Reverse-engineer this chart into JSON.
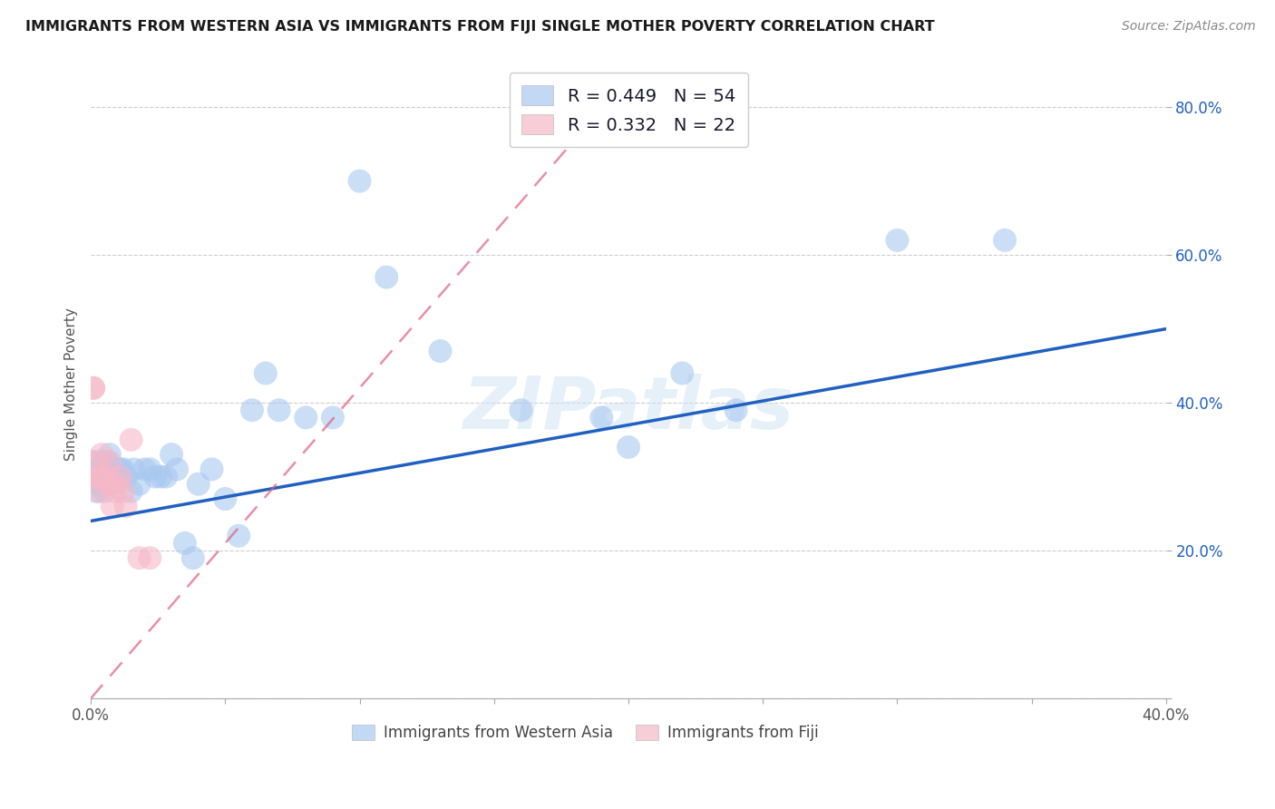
{
  "title": "IMMIGRANTS FROM WESTERN ASIA VS IMMIGRANTS FROM FIJI SINGLE MOTHER POVERTY CORRELATION CHART",
  "source": "Source: ZipAtlas.com",
  "ylabel": "Single Mother Poverty",
  "xlim": [
    0.0,
    0.4
  ],
  "ylim": [
    0.0,
    0.85
  ],
  "xticks": [
    0.0,
    0.05,
    0.1,
    0.15,
    0.2,
    0.25,
    0.3,
    0.35,
    0.4
  ],
  "yticks": [
    0.0,
    0.2,
    0.4,
    0.6,
    0.8
  ],
  "blue_R": 0.449,
  "blue_N": 54,
  "pink_R": 0.332,
  "pink_N": 22,
  "blue_color": "#a8c8f0",
  "pink_color": "#f5b8c8",
  "blue_line_color": "#2060c0",
  "pink_line_color": "#e06080",
  "watermark": "ZIPatlas",
  "blue_label": "Immigrants from Western Asia",
  "pink_label": "Immigrants from Fiji",
  "blue_scatter_x": [
    0.001,
    0.001,
    0.002,
    0.002,
    0.003,
    0.003,
    0.003,
    0.004,
    0.004,
    0.005,
    0.005,
    0.005,
    0.006,
    0.006,
    0.007,
    0.007,
    0.008,
    0.008,
    0.009,
    0.01,
    0.011,
    0.012,
    0.013,
    0.015,
    0.016,
    0.018,
    0.02,
    0.022,
    0.024,
    0.026,
    0.028,
    0.03,
    0.032,
    0.035,
    0.038,
    0.04,
    0.045,
    0.05,
    0.055,
    0.06,
    0.065,
    0.07,
    0.08,
    0.09,
    0.1,
    0.11,
    0.13,
    0.16,
    0.19,
    0.2,
    0.22,
    0.24,
    0.3,
    0.34
  ],
  "blue_scatter_y": [
    0.3,
    0.32,
    0.28,
    0.31,
    0.3,
    0.29,
    0.31,
    0.32,
    0.3,
    0.28,
    0.31,
    0.3,
    0.32,
    0.3,
    0.33,
    0.3,
    0.3,
    0.29,
    0.3,
    0.31,
    0.31,
    0.31,
    0.3,
    0.28,
    0.31,
    0.29,
    0.31,
    0.31,
    0.3,
    0.3,
    0.3,
    0.33,
    0.31,
    0.21,
    0.19,
    0.29,
    0.31,
    0.27,
    0.22,
    0.39,
    0.44,
    0.39,
    0.38,
    0.38,
    0.7,
    0.57,
    0.47,
    0.39,
    0.38,
    0.34,
    0.44,
    0.39,
    0.62,
    0.62
  ],
  "pink_scatter_x": [
    0.001,
    0.001,
    0.002,
    0.002,
    0.003,
    0.003,
    0.004,
    0.004,
    0.005,
    0.006,
    0.006,
    0.007,
    0.007,
    0.008,
    0.009,
    0.01,
    0.011,
    0.012,
    0.013,
    0.015,
    0.018,
    0.022
  ],
  "pink_scatter_y": [
    0.42,
    0.42,
    0.3,
    0.32,
    0.3,
    0.28,
    0.3,
    0.33,
    0.3,
    0.3,
    0.29,
    0.32,
    0.29,
    0.26,
    0.28,
    0.29,
    0.3,
    0.28,
    0.26,
    0.35,
    0.19,
    0.19
  ],
  "blue_line_x0": 0.0,
  "blue_line_y0": 0.24,
  "blue_line_x1": 0.4,
  "blue_line_y1": 0.5,
  "pink_line_x0": 0.0,
  "pink_line_y0": 0.0,
  "pink_line_x1": 0.2,
  "pink_line_y1": 0.84
}
